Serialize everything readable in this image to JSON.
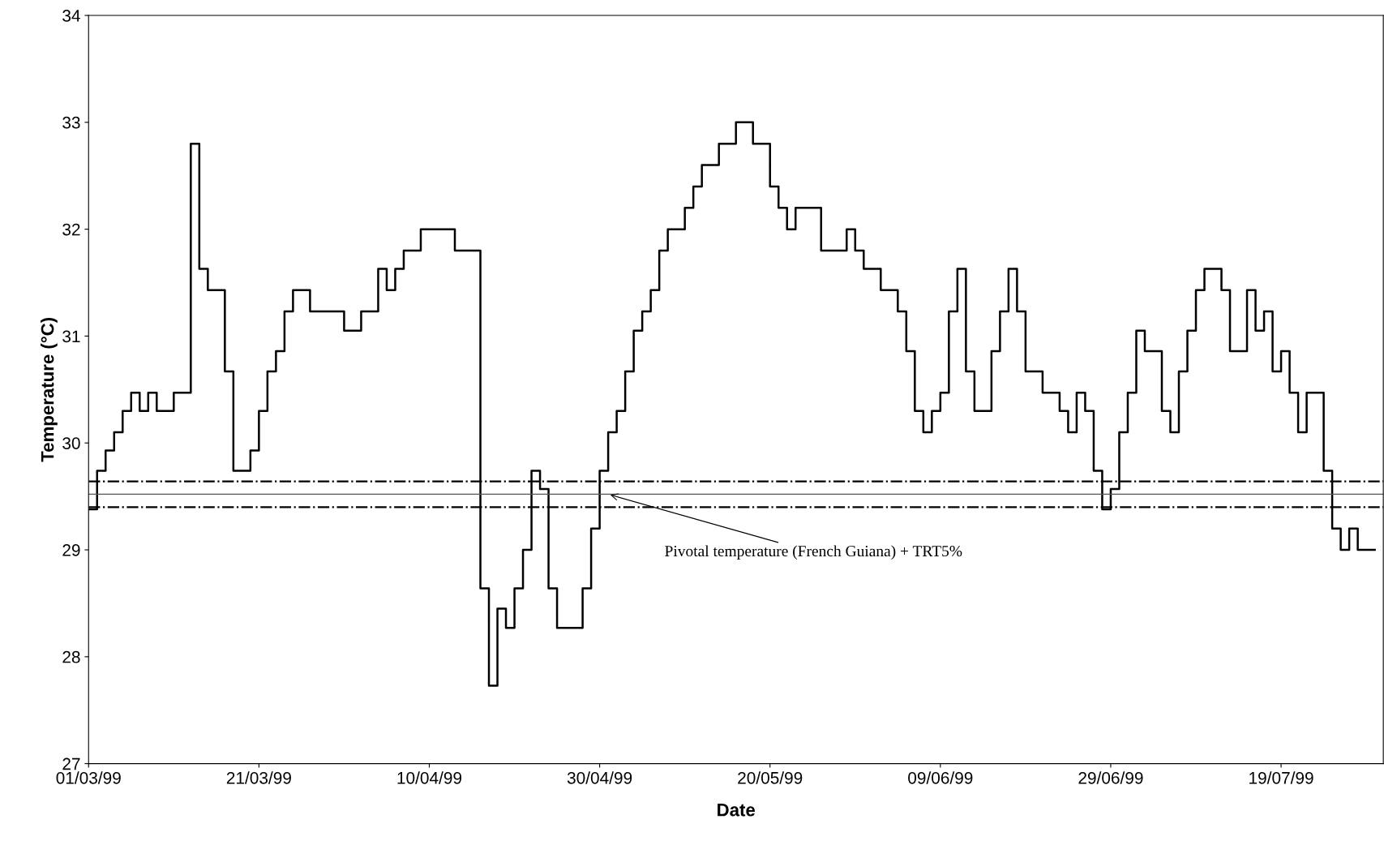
{
  "chart_data": {
    "type": "step",
    "xlabel": "Date",
    "ylabel": "Temperature (°C)",
    "x": [
      "1999-03-01",
      "1999-03-02",
      "1999-03-03",
      "1999-03-04",
      "1999-03-05",
      "1999-03-06",
      "1999-03-07",
      "1999-03-08",
      "1999-03-09",
      "1999-03-11",
      "1999-03-13",
      "1999-03-14",
      "1999-03-15",
      "1999-03-17",
      "1999-03-18",
      "1999-03-20",
      "1999-03-21",
      "1999-03-22",
      "1999-03-23",
      "1999-03-24",
      "1999-03-25",
      "1999-03-27",
      "1999-03-31",
      "1999-04-02",
      "1999-04-04",
      "1999-04-05",
      "1999-04-06",
      "1999-04-07",
      "1999-04-09",
      "1999-04-13",
      "1999-04-16",
      "1999-04-17",
      "1999-04-18",
      "1999-04-19",
      "1999-04-20",
      "1999-04-21",
      "1999-04-22",
      "1999-04-23",
      "1999-04-24",
      "1999-04-25",
      "1999-04-28",
      "1999-04-29",
      "1999-04-30",
      "1999-05-01",
      "1999-05-02",
      "1999-05-03",
      "1999-05-04",
      "1999-05-05",
      "1999-05-06",
      "1999-05-07",
      "1999-05-08",
      "1999-05-10",
      "1999-05-11",
      "1999-05-12",
      "1999-05-14",
      "1999-05-16",
      "1999-05-18",
      "1999-05-20",
      "1999-05-21",
      "1999-05-22",
      "1999-05-23",
      "1999-05-26",
      "1999-05-29",
      "1999-05-30",
      "1999-05-31",
      "1999-06-02",
      "1999-06-04",
      "1999-06-05",
      "1999-06-06",
      "1999-06-07",
      "1999-06-08",
      "1999-06-09",
      "1999-06-10",
      "1999-06-11",
      "1999-06-12",
      "1999-06-13",
      "1999-06-15",
      "1999-06-16",
      "1999-06-17",
      "1999-06-18",
      "1999-06-19",
      "1999-06-21",
      "1999-06-23",
      "1999-06-24",
      "1999-06-25",
      "1999-06-26",
      "1999-06-27",
      "1999-06-28",
      "1999-06-29",
      "1999-06-30",
      "1999-07-01",
      "1999-07-02",
      "1999-07-03",
      "1999-07-05",
      "1999-07-06",
      "1999-07-07",
      "1999-07-08",
      "1999-07-09",
      "1999-07-10",
      "1999-07-12",
      "1999-07-13",
      "1999-07-15",
      "1999-07-16",
      "1999-07-17",
      "1999-07-18",
      "1999-07-19",
      "1999-07-20",
      "1999-07-21",
      "1999-07-22",
      "1999-07-24",
      "1999-07-25",
      "1999-07-26",
      "1999-07-27",
      "1999-07-28",
      "1999-07-30"
    ],
    "series": [
      {
        "color": "#000000",
        "values": [
          29.38,
          29.74,
          29.93,
          30.1,
          30.3,
          30.47,
          30.3,
          30.47,
          30.3,
          30.47,
          32.8,
          31.63,
          31.43,
          30.67,
          29.74,
          29.93,
          30.3,
          30.67,
          30.86,
          31.23,
          31.43,
          31.23,
          31.05,
          31.23,
          31.63,
          31.43,
          31.63,
          31.8,
          32.0,
          31.8,
          28.64,
          27.73,
          28.45,
          28.27,
          28.64,
          29.0,
          29.74,
          29.57,
          28.64,
          28.27,
          28.64,
          29.2,
          29.74,
          30.1,
          30.3,
          30.67,
          31.05,
          31.23,
          31.43,
          31.8,
          32.0,
          32.2,
          32.4,
          32.6,
          32.8,
          33.0,
          32.8,
          32.4,
          32.2,
          32.0,
          32.2,
          31.8,
          32.0,
          31.8,
          31.63,
          31.43,
          31.23,
          30.86,
          30.3,
          30.1,
          30.3,
          30.47,
          31.23,
          31.63,
          30.67,
          30.3,
          30.86,
          31.23,
          31.63,
          31.23,
          30.67,
          30.47,
          30.3,
          30.1,
          30.47,
          30.3,
          29.74,
          29.38,
          29.57,
          30.1,
          30.47,
          31.05,
          30.86,
          30.3,
          30.1,
          30.67,
          31.05,
          31.43,
          31.63,
          31.43,
          30.86,
          31.43,
          31.05,
          31.23,
          30.67,
          30.86,
          30.47,
          30.1,
          30.47,
          29.74,
          29.2,
          29.0,
          29.2,
          29.0,
          29.0
        ]
      }
    ],
    "xlim": [
      "1999-03-01",
      "1999-07-31"
    ],
    "xticks": [
      {
        "value": "1999-03-01",
        "label": "01/03/99"
      },
      {
        "value": "1999-03-21",
        "label": "21/03/99"
      },
      {
        "value": "1999-04-10",
        "label": "10/04/99"
      },
      {
        "value": "1999-04-30",
        "label": "30/04/99"
      },
      {
        "value": "1999-05-20",
        "label": "20/05/99"
      },
      {
        "value": "1999-06-09",
        "label": "09/06/99"
      },
      {
        "value": "1999-06-29",
        "label": "29/06/99"
      },
      {
        "value": "1999-07-19",
        "label": "19/07/99"
      }
    ],
    "ylim": [
      27,
      34
    ],
    "yticks": [
      27,
      28,
      29,
      30,
      31,
      32,
      33,
      34
    ],
    "ref_lines": [
      {
        "axis": "y",
        "value": 29.64,
        "color": "#000000",
        "line_style": "dashdot"
      },
      {
        "axis": "y",
        "value": 29.52,
        "color": "#555555",
        "line_style": "solid"
      },
      {
        "axis": "y",
        "value": 29.4,
        "color": "#000000",
        "line_style": "dashdot"
      }
    ],
    "annotations": [
      {
        "text": "Pivotal temperature (French Guiana) + TRT5%",
        "x": "1999-05-01",
        "y": 29.52
      }
    ],
    "grid": false,
    "legend": false
  }
}
